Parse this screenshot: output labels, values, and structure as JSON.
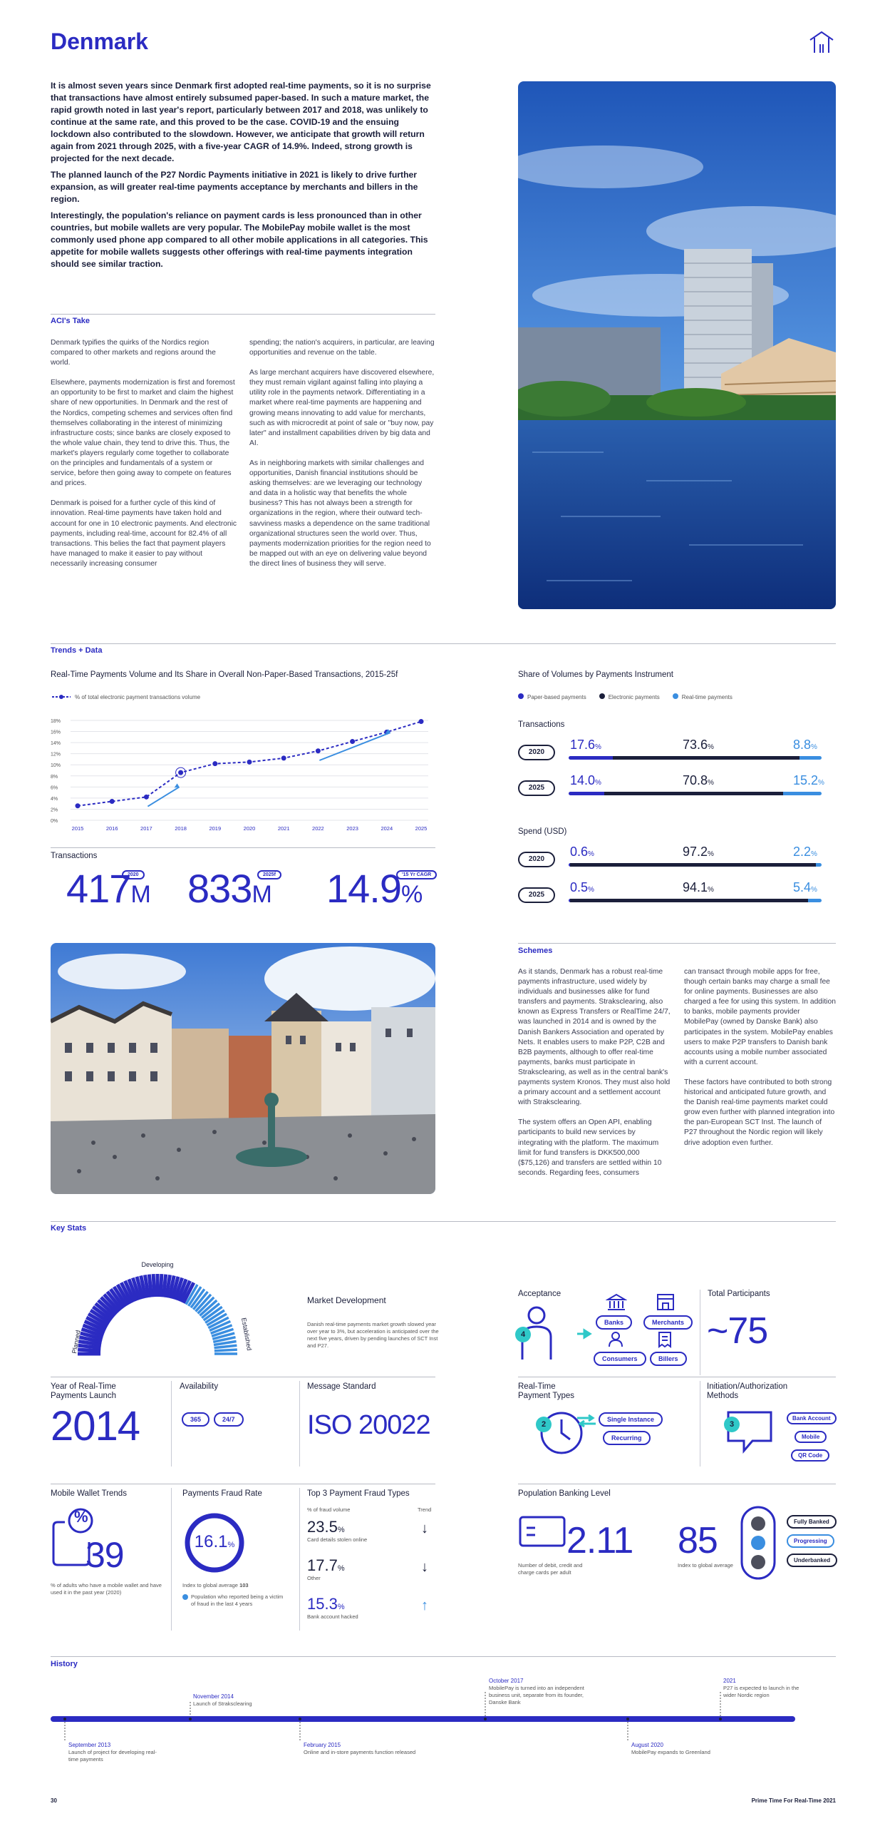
{
  "page": {
    "title": "Denmark",
    "page_number": "30",
    "footer": "Prime Time For Real-Time 2021"
  },
  "intro": [
    "It is almost seven years since Denmark first adopted real-time payments, so it is no surprise that transactions have almost entirely subsumed paper-based. In such a mature market, the rapid growth noted in last year's report, particularly between 2017 and 2018, was unlikely to continue at the same rate, and this proved to be the case. COVID-19 and the ensuing lockdown also contributed to the slowdown. However, we anticipate that growth will return again from 2021 through 2025, with a five-year CAGR of 14.9%. Indeed, strong growth is projected for the next decade.",
    "The planned launch of the P27 Nordic Payments initiative in 2021 is likely to drive further expansion, as will greater real-time payments acceptance by merchants and billers in the region.",
    "Interestingly, the population's reliance on payment cards is less pronounced than in other countries, but mobile wallets are very popular. The MobilePay mobile wallet is the most commonly used phone app compared to all other mobile applications in all categories. This appetite for mobile wallets suggests other offerings with real-time payments integration should see similar traction."
  ],
  "aci": {
    "heading": "ACI's Take",
    "col1": [
      "Denmark typifies the quirks of the Nordics region compared to other markets and regions around the world.",
      "Elsewhere, payments modernization is first and foremost an opportunity to be first to market and claim the highest share of new opportunities. In Denmark and the rest of the Nordics, competing schemes and services often find themselves collaborating in the interest of minimizing infrastructure costs; since banks are closely exposed to the whole value chain, they tend to drive this. Thus, the market's players regularly come together to collaborate on the principles and fundamentals of a system or service, before then going away to compete on features and prices.",
      "Denmark is poised for a further cycle of this kind of innovation. Real-time payments have taken hold and account for one in 10 electronic payments. And electronic payments, including real-time, account for 82.4% of all transactions. This belies the fact that payment players have managed to make it easier to pay without necessarily increasing consumer"
    ],
    "col2": [
      "spending; the nation's acquirers, in particular, are leaving opportunities and revenue on the table.",
      "As large merchant acquirers have discovered elsewhere, they must remain vigilant against falling into playing a utility role in the payments network. Differentiating in a market where real-time payments are happening and growing means innovating to add value for merchants, such as with microcredit at point of sale or \"buy now, pay later\" and installment capabilities driven by big data and AI.",
      "As in neighboring markets with similar challenges and opportunities, Danish financial institutions should be asking themselves: are we leveraging our technology and data in a holistic way that benefits the whole business? This has not always been a strength for organizations in the region, where their outward tech-savviness masks a dependence on the same traditional organizational structures seen the world over. Thus, payments modernization priorities for the region need to be mapped out with an eye on delivering value beyond the direct lines of business they will serve."
    ]
  },
  "trends": {
    "heading": "Trends + Data"
  },
  "chart_data": [
    {
      "type": "line",
      "title": "Real-Time Payments Volume and Its Share in Overall Non-Paper-Based Transactions, 2015-25f",
      "legend": "% of total electronic payment transactions volume",
      "x": [
        "2015",
        "2016",
        "2017",
        "2018",
        "2019",
        "2020",
        "2021",
        "2022",
        "2023",
        "2024",
        "2025"
      ],
      "values": [
        2.6,
        3.4,
        4.2,
        8.6,
        10.2,
        10.5,
        11.2,
        12.5,
        14.2,
        15.9,
        17.8
      ],
      "y_ticks": [
        "18%",
        "16%",
        "14%",
        "12%",
        "10%",
        "8%",
        "6%",
        "4%",
        "2%",
        "0%"
      ],
      "ylim": [
        0,
        18
      ]
    },
    {
      "type": "bar",
      "title": "Share of Volumes by Payments Instrument",
      "legend": [
        "Paper-based payments",
        "Electronic payments",
        "Real-time payments"
      ],
      "colors": [
        "#2b2bc2",
        "#1b1f3b",
        "#3a8ee0"
      ],
      "groups": [
        {
          "label": "Transactions",
          "rows": [
            {
              "year": "2020",
              "values": [
                17.6,
                73.6,
                8.8
              ]
            },
            {
              "year": "2025",
              "values": [
                14.0,
                70.8,
                15.2
              ]
            }
          ]
        },
        {
          "label": "Spend (USD)",
          "rows": [
            {
              "year": "2020",
              "values": [
                0.6,
                97.2,
                2.2
              ]
            },
            {
              "year": "2025",
              "values": [
                0.5,
                94.1,
                5.4
              ]
            }
          ]
        }
      ]
    }
  ],
  "transactions": {
    "label": "Transactions",
    "items": [
      {
        "value": "417",
        "unit": "M",
        "tag": "2020"
      },
      {
        "value": "833",
        "unit": "M",
        "tag": "2025f"
      },
      {
        "value": "14.9",
        "unit": "%",
        "tag": "'15 Yr CAGR"
      }
    ]
  },
  "schemes": {
    "heading": "Schemes",
    "col1": [
      "As it stands, Denmark has a robust real-time payments infrastructure, used widely by individuals and businesses alike for fund transfers and payments. Straksclearing, also known as Express Transfers or RealTime 24/7, was launched in 2014 and is owned by the Danish Bankers Association and operated by Nets. It enables users to make P2P, C2B and B2B payments, although to offer real-time payments, banks must participate in Straksclearing, as well as in the central bank's payments system Kronos. They must also hold a primary account and a settlement account with Straksclearing.",
      "The system offers an Open API, enabling participants to build new services by integrating with the platform. The maximum limit for fund transfers is DKK500,000 ($75,126) and transfers are settled within 10 seconds. Regarding fees, consumers"
    ],
    "col2": [
      "can transact through mobile apps for free, though certain banks may charge a small fee for online payments. Businesses are also charged a fee for using this system. In addition to banks, mobile payments provider MobilePay (owned by Danske Bank) also participates in the system. MobilePay enables users to make P2P transfers to Danish bank accounts using a mobile number associated with a current account.",
      "These factors have contributed to both strong historical and anticipated future growth, and the Danish real-time payments market could grow even further with planned integration into the pan-European SCT Inst. The launch of P27 throughout the Nordic region will likely drive adoption even further."
    ]
  },
  "keystats": {
    "heading": "Key Stats",
    "gauge": {
      "labels": [
        "Planned",
        "Developing",
        "Established"
      ],
      "title": "Market Development",
      "text": "Danish real-time payments market growth slowed year over year to 3%, but acceleration is anticipated over the next five years, driven by pending launches of SCT Inst and P27."
    },
    "acceptance": {
      "label": "Acceptance",
      "number": "4",
      "items": [
        "Banks",
        "Merchants",
        "Consumers",
        "Billers"
      ]
    },
    "participants": {
      "label": "Total Participants",
      "value": "~75"
    },
    "launch": {
      "label": "Year of Real-Time Payments Launch",
      "value": "2014"
    },
    "availability": {
      "label": "Availability",
      "items": [
        "365",
        "24/7"
      ]
    },
    "standard": {
      "label": "Message Standard",
      "value": "ISO 20022"
    },
    "types": {
      "label": "Real-Time Payment Types",
      "number": "2",
      "items": [
        "Single Instance",
        "Recurring"
      ]
    },
    "methods": {
      "label": "Initiation/Authorization Methods",
      "number": "3",
      "items": [
        "Bank Account",
        "Mobile",
        "QR Code"
      ]
    },
    "wallet": {
      "label": "Mobile Wallet Trends",
      "value": "39",
      "sym": "%",
      "note": "% of adults who have a mobile wallet and have used it in the past year (2020)"
    },
    "fraud": {
      "label": "Payments Fraud Rate",
      "value": "16.1",
      "unit": "%",
      "note1": "Index to global average ",
      "note1b": "103",
      "note2": "Population who reported being a victim of fraud in the last 4 years"
    },
    "fraudtypes": {
      "label": "Top 3 Payment Fraud Types",
      "sub1": "% of fraud volume",
      "sub2": "Trend",
      "items": [
        {
          "value": "23.5",
          "unit": "%",
          "name": "Card details stolen online",
          "trend": "down"
        },
        {
          "value": "17.7",
          "unit": "%",
          "name": "Other",
          "trend": "down"
        },
        {
          "value": "15.3",
          "unit": "%",
          "name": "Bank account hacked",
          "trend": "up"
        }
      ]
    },
    "banking": {
      "label": "Population Banking Level",
      "cards": "2.11",
      "cards_note": "Number of debit, credit and charge cards per adult",
      "index": "85",
      "index_note": "Index to global average",
      "levels": [
        "Fully Banked",
        "Progressing",
        "Underbanked"
      ]
    }
  },
  "history": {
    "heading": "History",
    "events": [
      {
        "date": "September 2013",
        "text": "Launch of project for developing real-time payments"
      },
      {
        "date": "November 2014",
        "text": "Launch of Straksclearing"
      },
      {
        "date": "February 2015",
        "text": "Online and in-store payments function released"
      },
      {
        "date": "October 2017",
        "text": "MobilePay is turned into an independent business unit, separate from its founder, Danske Bank"
      },
      {
        "date": "August 2020",
        "text": "MobilePay expands to Greenland"
      },
      {
        "date": "2021",
        "text": "P27 is expected to launch in the wider Nordic region"
      }
    ]
  }
}
